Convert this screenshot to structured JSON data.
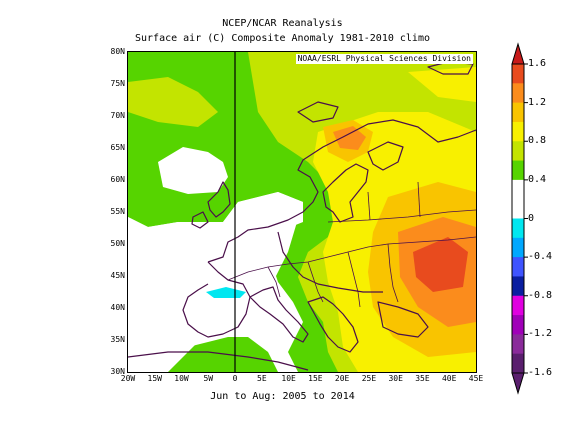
{
  "header": {
    "title": "NCEP/NCAR Reanalysis",
    "subtitle": "Surface air (C) Composite Anomaly 1981-2010 climo",
    "source": "NOAA/ESRL Physical Sciences Division",
    "period": "Jun to Aug: 2005 to 2014"
  },
  "map": {
    "lat_labels": [
      "80N",
      "75N",
      "70N",
      "65N",
      "60N",
      "55N",
      "50N",
      "45N",
      "40N",
      "35N",
      "30N"
    ],
    "lon_labels": [
      "20W",
      "15W",
      "10W",
      "5W",
      "0",
      "5E",
      "10E",
      "15E",
      "20E",
      "25E",
      "30E",
      "35E",
      "40E",
      "45E"
    ],
    "extent": {
      "lon_min": -20,
      "lon_max": 45,
      "lat_min": 30,
      "lat_max": 80
    }
  },
  "colorbar": {
    "labels": [
      "1.6",
      "1.2",
      "0.8",
      "0.4",
      "0",
      "-0.4",
      "-0.8",
      "-1.2",
      "-1.6"
    ],
    "bins": [
      {
        "color": "#e84b1e"
      },
      {
        "color": "#fb8c1c"
      },
      {
        "color": "#f9c400"
      },
      {
        "color": "#f8f000"
      },
      {
        "color": "#c3e400"
      },
      {
        "color": "#56d400"
      },
      {
        "color": "#ffffff"
      },
      {
        "color": "#ffffff"
      },
      {
        "color": "#00e7f0"
      },
      {
        "color": "#00a8ff"
      },
      {
        "color": "#3f54ff"
      },
      {
        "color": "#0a1ea0"
      },
      {
        "color": "#e000e0"
      },
      {
        "color": "#a000b8"
      },
      {
        "color": "#8a2b9a"
      },
      {
        "color": "#5a1f6e"
      }
    ]
  },
  "colors": {
    "green": "#56d400",
    "yellow_green": "#c3e400",
    "yellow": "#f8f000",
    "gold": "#f9c400",
    "orange": "#fb8c1c",
    "red_orange": "#e84b1e",
    "cyan": "#00e7f0",
    "coast": "#4a0f4a"
  }
}
